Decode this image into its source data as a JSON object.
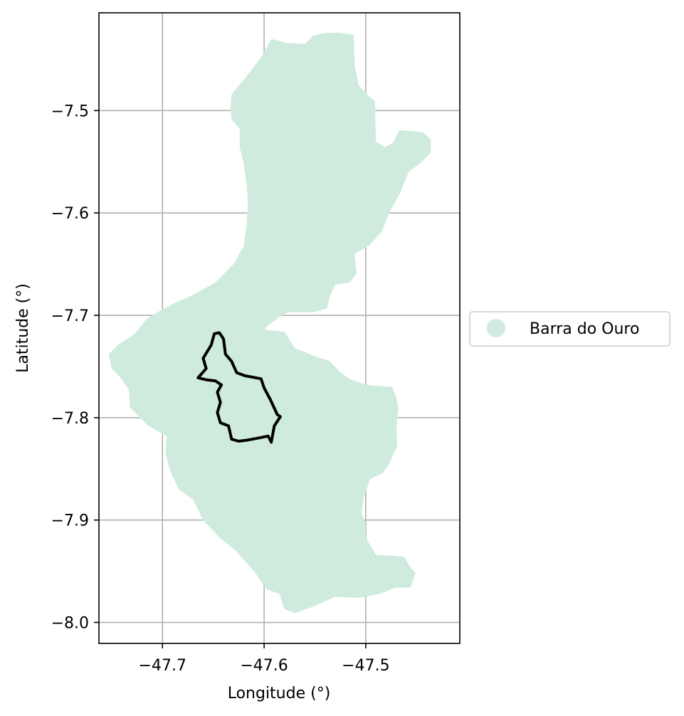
{
  "chart_data": {
    "type": "map",
    "xlabel": "Longitude (°)",
    "ylabel": "Latitude (°)",
    "xlim": [
      -47.7625,
      -47.4075
    ],
    "ylim": [
      -8.0205,
      -7.4045
    ],
    "x_ticks": [
      {
        "value": -47.7,
        "label": "−47.7"
      },
      {
        "value": -47.6,
        "label": "−47.6"
      },
      {
        "value": -47.5,
        "label": "−47.5"
      }
    ],
    "y_ticks": [
      {
        "value": -7.5,
        "label": "−7.5"
      },
      {
        "value": -7.6,
        "label": "−7.6"
      },
      {
        "value": -7.7,
        "label": "−7.7"
      },
      {
        "value": -7.8,
        "label": "−7.8"
      },
      {
        "value": -7.9,
        "label": "−7.9"
      },
      {
        "value": -8.0,
        "label": "−8.0"
      }
    ],
    "grid": true,
    "legend": {
      "placement": "right-center",
      "entries": [
        {
          "label": "Barra do Ouro",
          "color": "#cfebdd",
          "marker": "circle"
        }
      ]
    },
    "region": {
      "name": "Barra do Ouro",
      "fill": "#cfebdd",
      "polygon": [
        [
          -47.593,
          -7.43
        ],
        [
          -47.578,
          -7.434
        ],
        [
          -47.56,
          -7.435
        ],
        [
          -47.552,
          -7.427
        ],
        [
          -47.54,
          -7.424
        ],
        [
          -47.527,
          -7.424
        ],
        [
          -47.512,
          -7.426
        ],
        [
          -47.511,
          -7.455
        ],
        [
          -47.507,
          -7.475
        ],
        [
          -47.499,
          -7.484
        ],
        [
          -47.491,
          -7.491
        ],
        [
          -47.49,
          -7.53
        ],
        [
          -47.481,
          -7.536
        ],
        [
          -47.473,
          -7.531
        ],
        [
          -47.467,
          -7.519
        ],
        [
          -47.457,
          -7.52
        ],
        [
          -47.444,
          -7.521
        ],
        [
          -47.436,
          -7.528
        ],
        [
          -47.436,
          -7.541
        ],
        [
          -47.446,
          -7.551
        ],
        [
          -47.458,
          -7.56
        ],
        [
          -47.466,
          -7.58
        ],
        [
          -47.477,
          -7.6
        ],
        [
          -47.484,
          -7.618
        ],
        [
          -47.497,
          -7.632
        ],
        [
          -47.511,
          -7.64
        ],
        [
          -47.509,
          -7.659
        ],
        [
          -47.516,
          -7.668
        ],
        [
          -47.53,
          -7.67
        ],
        [
          -47.535,
          -7.68
        ],
        [
          -47.538,
          -7.693
        ],
        [
          -47.551,
          -7.697
        ],
        [
          -47.576,
          -7.697
        ],
        [
          -47.583,
          -7.7
        ],
        [
          -47.596,
          -7.71
        ],
        [
          -47.6,
          -7.714
        ],
        [
          -47.58,
          -7.716
        ],
        [
          -47.57,
          -7.732
        ],
        [
          -47.55,
          -7.74
        ],
        [
          -47.535,
          -7.745
        ],
        [
          -47.526,
          -7.755
        ],
        [
          -47.516,
          -7.762
        ],
        [
          -47.5,
          -7.768
        ],
        [
          -47.488,
          -7.769
        ],
        [
          -47.474,
          -7.77
        ],
        [
          -47.47,
          -7.78
        ],
        [
          -47.468,
          -7.79
        ],
        [
          -47.47,
          -7.812
        ],
        [
          -47.469,
          -7.827
        ],
        [
          -47.477,
          -7.845
        ],
        [
          -47.483,
          -7.854
        ],
        [
          -47.496,
          -7.86
        ],
        [
          -47.502,
          -7.878
        ],
        [
          -47.504,
          -7.893
        ],
        [
          -47.5,
          -7.904
        ],
        [
          -47.5,
          -7.917
        ],
        [
          -47.49,
          -7.934
        ],
        [
          -47.474,
          -7.935
        ],
        [
          -47.462,
          -7.936
        ],
        [
          -47.457,
          -7.945
        ],
        [
          -47.451,
          -7.952
        ],
        [
          -47.456,
          -7.966
        ],
        [
          -47.471,
          -7.966
        ],
        [
          -47.486,
          -7.972
        ],
        [
          -47.506,
          -7.976
        ],
        [
          -47.53,
          -7.975
        ],
        [
          -47.553,
          -7.985
        ],
        [
          -47.57,
          -7.991
        ],
        [
          -47.58,
          -7.987
        ],
        [
          -47.585,
          -7.972
        ],
        [
          -47.597,
          -7.968
        ],
        [
          -47.61,
          -7.95
        ],
        [
          -47.628,
          -7.93
        ],
        [
          -47.643,
          -7.918
        ],
        [
          -47.66,
          -7.9
        ],
        [
          -47.67,
          -7.88
        ],
        [
          -47.684,
          -7.87
        ],
        [
          -47.692,
          -7.853
        ],
        [
          -47.697,
          -7.835
        ],
        [
          -47.696,
          -7.818
        ],
        [
          -47.714,
          -7.808
        ],
        [
          -47.732,
          -7.79
        ],
        [
          -47.733,
          -7.773
        ],
        [
          -47.742,
          -7.76
        ],
        [
          -47.75,
          -7.752
        ],
        [
          -47.753,
          -7.738
        ],
        [
          -47.744,
          -7.729
        ],
        [
          -47.727,
          -7.718
        ],
        [
          -47.716,
          -7.704
        ],
        [
          -47.705,
          -7.697
        ],
        [
          -47.688,
          -7.688
        ],
        [
          -47.67,
          -7.68
        ],
        [
          -47.648,
          -7.668
        ],
        [
          -47.63,
          -7.65
        ],
        [
          -47.62,
          -7.632
        ],
        [
          -47.617,
          -7.61
        ],
        [
          -47.616,
          -7.592
        ],
        [
          -47.617,
          -7.573
        ],
        [
          -47.62,
          -7.552
        ],
        [
          -47.624,
          -7.536
        ],
        [
          -47.624,
          -7.518
        ],
        [
          -47.632,
          -7.509
        ],
        [
          -47.633,
          -7.497
        ],
        [
          -47.632,
          -7.484
        ],
        [
          -47.62,
          -7.47
        ],
        [
          -47.603,
          -7.448
        ]
      ]
    },
    "outline": {
      "stroke": "#000000",
      "polygon": [
        [
          -47.644,
          -7.717
        ],
        [
          -47.64,
          -7.723
        ],
        [
          -47.638,
          -7.738
        ],
        [
          -47.632,
          -7.745
        ],
        [
          -47.627,
          -7.756
        ],
        [
          -47.619,
          -7.759
        ],
        [
          -47.603,
          -7.762
        ],
        [
          -47.6,
          -7.771
        ],
        [
          -47.594,
          -7.782
        ],
        [
          -47.587,
          -7.797
        ],
        [
          -47.584,
          -7.799
        ],
        [
          -47.59,
          -7.808
        ],
        [
          -47.593,
          -7.824
        ],
        [
          -47.596,
          -7.818
        ],
        [
          -47.606,
          -7.82
        ],
        [
          -47.617,
          -7.822
        ],
        [
          -47.625,
          -7.823
        ],
        [
          -47.632,
          -7.821
        ],
        [
          -47.635,
          -7.808
        ],
        [
          -47.643,
          -7.805
        ],
        [
          -47.646,
          -7.795
        ],
        [
          -47.643,
          -7.785
        ],
        [
          -47.646,
          -7.775
        ],
        [
          -47.642,
          -7.768
        ],
        [
          -47.648,
          -7.764
        ],
        [
          -47.657,
          -7.763
        ],
        [
          -47.665,
          -7.761
        ],
        [
          -47.657,
          -7.752
        ],
        [
          -47.66,
          -7.742
        ],
        [
          -47.652,
          -7.729
        ],
        [
          -47.649,
          -7.718
        ]
      ]
    }
  }
}
